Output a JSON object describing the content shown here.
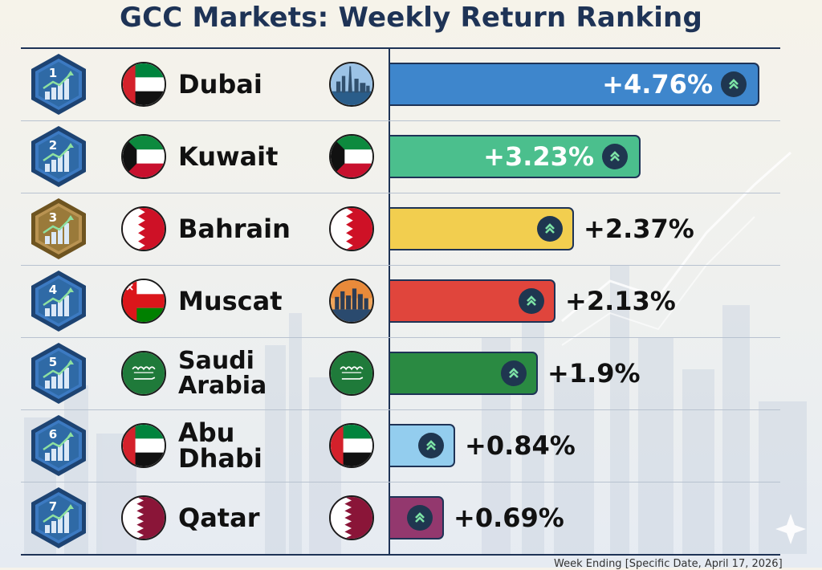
{
  "chart_data": {
    "type": "bar",
    "orientation": "horizontal",
    "title": "GCC Markets: Weekly Return Ranking",
    "categories": [
      "Dubai",
      "Kuwait",
      "Bahrain",
      "Muscat",
      "Saudi Arabia",
      "Abu Dhabi",
      "Qatar"
    ],
    "values": [
      4.76,
      3.23,
      2.37,
      2.13,
      1.9,
      0.84,
      0.69
    ],
    "ranks": [
      "1",
      "2",
      "3",
      "4",
      "5",
      "6",
      "7"
    ],
    "value_labels": [
      "+4.76%",
      "+3.23%",
      "+2.37%",
      "+2.13%",
      "+1.9%",
      "+0.84%",
      "+0.69%"
    ],
    "bar_colors": [
      "#3e86cc",
      "#4bbf8d",
      "#f2ce4f",
      "#e0453c",
      "#2a8a42",
      "#93cdee",
      "#93386e"
    ],
    "badge_colors": [
      "#2f6aa6",
      "#2f6aa6",
      "#9a7a3a",
      "#2f6aa6",
      "#2f6aa6",
      "#2f6aa6",
      "#2f6aa6"
    ],
    "flags": [
      "uae",
      "kuwait",
      "bahrain",
      "oman",
      "saudi",
      "uae",
      "qatar"
    ],
    "right_icons": [
      "dubai-skyline-icon",
      "kuwait-flag-icon",
      "bahrain-flag-icon",
      "muscat-skyline-icon",
      "saudi-flag-icon",
      "uae-flag-icon",
      "qatar-flag-icon"
    ],
    "footnote": "Week Ending [Specific Date, April 17, 2026]",
    "grid": false,
    "legend": "none"
  }
}
